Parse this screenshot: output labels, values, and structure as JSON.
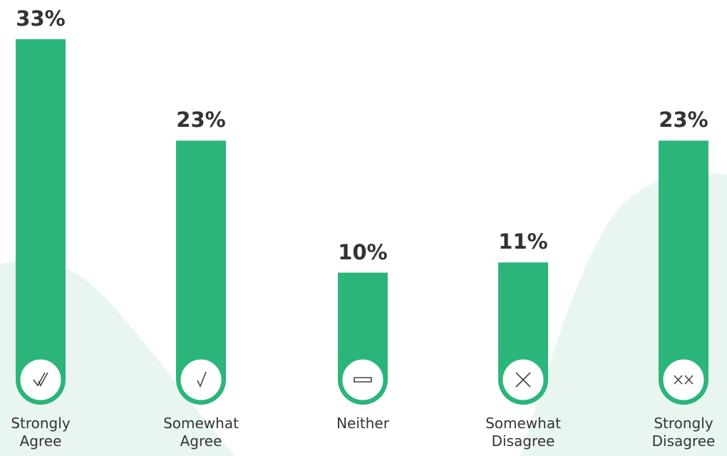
{
  "chart_data": {
    "type": "bar",
    "categories": [
      "Strongly Agree",
      "Somewhat Agree",
      "Neither",
      "Somewhat Disagree",
      "Strongly Disagree"
    ],
    "values": [
      33,
      23,
      10,
      11,
      23
    ],
    "value_labels": [
      "33%",
      "23%",
      "10%",
      "11%",
      "23%"
    ],
    "color": "#2bb57a"
  }
}
